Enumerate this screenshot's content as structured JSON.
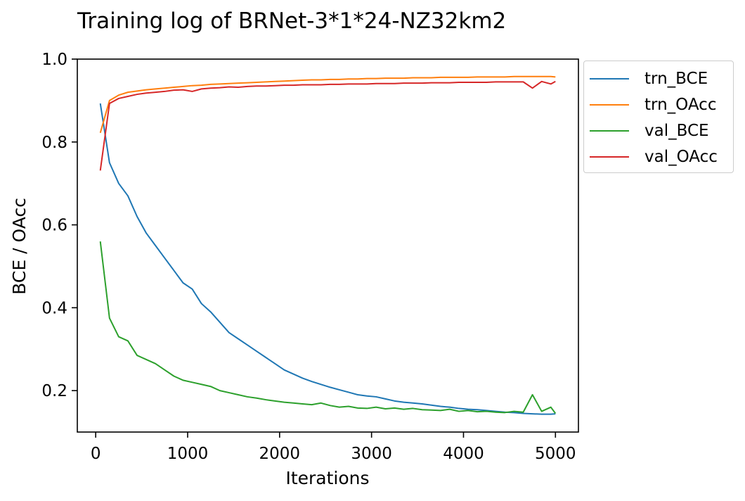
{
  "chart_data": {
    "type": "line",
    "title": "Training log of BRNet-3*1*24-NZ32km2",
    "xlabel": "Iterations",
    "ylabel": "BCE / OAcc",
    "xlim": [
      -200,
      5250
    ],
    "ylim": [
      0.1,
      1.0
    ],
    "xticks": [
      0,
      1000,
      2000,
      3000,
      4000,
      5000
    ],
    "yticks": [
      0.2,
      0.4,
      0.6,
      0.8,
      1.0
    ],
    "xtick_labels": [
      "0",
      "1000",
      "2000",
      "3000",
      "4000",
      "5000"
    ],
    "ytick_labels": [
      "0.2",
      "0.4",
      "0.6",
      "0.8",
      "1.0"
    ],
    "grid": false,
    "legend_position": "outside top-right",
    "x": [
      50,
      150,
      250,
      350,
      450,
      550,
      650,
      750,
      850,
      950,
      1050,
      1150,
      1250,
      1350,
      1450,
      1550,
      1650,
      1750,
      1850,
      1950,
      2050,
      2150,
      2250,
      2350,
      2450,
      2550,
      2650,
      2750,
      2850,
      2950,
      3050,
      3150,
      3250,
      3350,
      3450,
      3550,
      3650,
      3750,
      3850,
      3950,
      4050,
      4150,
      4250,
      4350,
      4450,
      4550,
      4650,
      4750,
      4850,
      4950,
      5000
    ],
    "series": [
      {
        "name": "trn_BCE",
        "color": "#1f77b4",
        "values": [
          0.893,
          0.75,
          0.7,
          0.67,
          0.62,
          0.58,
          0.55,
          0.52,
          0.49,
          0.46,
          0.445,
          0.41,
          0.39,
          0.365,
          0.34,
          0.325,
          0.31,
          0.295,
          0.28,
          0.265,
          0.25,
          0.24,
          0.23,
          0.222,
          0.215,
          0.208,
          0.202,
          0.196,
          0.19,
          0.187,
          0.185,
          0.18,
          0.175,
          0.172,
          0.17,
          0.168,
          0.165,
          0.162,
          0.16,
          0.157,
          0.155,
          0.154,
          0.152,
          0.15,
          0.148,
          0.147,
          0.145,
          0.144,
          0.143,
          0.143,
          0.144
        ]
      },
      {
        "name": "trn_OAcc",
        "color": "#ff7f0e",
        "values": [
          0.822,
          0.9,
          0.913,
          0.92,
          0.923,
          0.926,
          0.928,
          0.93,
          0.932,
          0.934,
          0.936,
          0.937,
          0.939,
          0.94,
          0.941,
          0.942,
          0.943,
          0.944,
          0.945,
          0.946,
          0.947,
          0.948,
          0.949,
          0.95,
          0.95,
          0.951,
          0.951,
          0.952,
          0.952,
          0.953,
          0.953,
          0.954,
          0.954,
          0.954,
          0.955,
          0.955,
          0.955,
          0.956,
          0.956,
          0.956,
          0.956,
          0.957,
          0.957,
          0.957,
          0.957,
          0.958,
          0.958,
          0.958,
          0.958,
          0.958,
          0.957
        ]
      },
      {
        "name": "val_BCE",
        "color": "#2ca02c",
        "values": [
          0.56,
          0.375,
          0.33,
          0.32,
          0.285,
          0.275,
          0.265,
          0.25,
          0.235,
          0.225,
          0.22,
          0.215,
          0.21,
          0.2,
          0.195,
          0.19,
          0.185,
          0.182,
          0.178,
          0.175,
          0.172,
          0.17,
          0.168,
          0.166,
          0.17,
          0.164,
          0.16,
          0.162,
          0.158,
          0.157,
          0.16,
          0.156,
          0.158,
          0.155,
          0.157,
          0.154,
          0.153,
          0.152,
          0.155,
          0.15,
          0.152,
          0.149,
          0.15,
          0.148,
          0.147,
          0.15,
          0.148,
          0.19,
          0.15,
          0.16,
          0.145
        ]
      },
      {
        "name": "val_OAcc",
        "color": "#d62728",
        "values": [
          0.731,
          0.893,
          0.905,
          0.91,
          0.915,
          0.918,
          0.92,
          0.922,
          0.925,
          0.926,
          0.922,
          0.928,
          0.93,
          0.931,
          0.933,
          0.932,
          0.934,
          0.935,
          0.935,
          0.936,
          0.937,
          0.937,
          0.938,
          0.938,
          0.938,
          0.939,
          0.939,
          0.94,
          0.94,
          0.94,
          0.941,
          0.941,
          0.941,
          0.942,
          0.942,
          0.942,
          0.943,
          0.943,
          0.943,
          0.944,
          0.944,
          0.944,
          0.944,
          0.945,
          0.945,
          0.945,
          0.945,
          0.93,
          0.946,
          0.94,
          0.946
        ]
      }
    ]
  }
}
